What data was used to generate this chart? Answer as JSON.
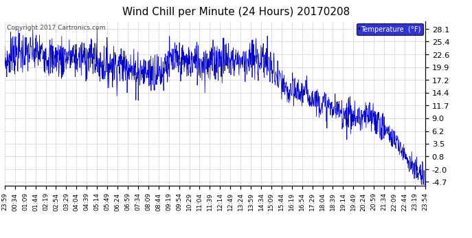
{
  "title": "Wind Chill per Minute (24 Hours) 20170208",
  "copyright_text": "Copyright 2017 Cartronics.com",
  "legend_label": "Temperature  (°F)",
  "line_color": "#0000cc",
  "background_color": "#ffffff",
  "plot_bg_color": "#ffffff",
  "grid_color": "#888888",
  "yticks": [
    -4.7,
    -2.0,
    0.8,
    3.5,
    6.2,
    9.0,
    11.7,
    14.4,
    17.2,
    19.9,
    22.6,
    25.4,
    28.1
  ],
  "xtick_labels": [
    "23:59",
    "00:34",
    "01:09",
    "01:44",
    "02:19",
    "02:54",
    "03:29",
    "04:04",
    "04:39",
    "05:14",
    "05:49",
    "06:24",
    "06:59",
    "07:34",
    "08:09",
    "08:44",
    "09:19",
    "09:54",
    "10:29",
    "11:04",
    "11:39",
    "12:14",
    "12:49",
    "13:24",
    "13:59",
    "14:34",
    "15:09",
    "15:44",
    "16:19",
    "16:54",
    "17:29",
    "18:04",
    "18:39",
    "19:14",
    "19:49",
    "20:24",
    "20:59",
    "21:34",
    "22:09",
    "22:44",
    "23:19",
    "23:54"
  ],
  "ylim": [
    -5.5,
    29.8
  ],
  "n_points": 1440
}
